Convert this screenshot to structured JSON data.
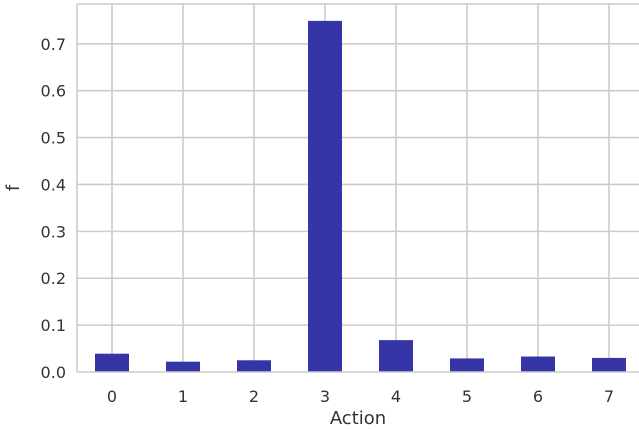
{
  "chart_data": {
    "type": "bar",
    "categories": [
      "0",
      "1",
      "2",
      "3",
      "4",
      "5",
      "6",
      "7"
    ],
    "values": [
      0.039,
      0.022,
      0.025,
      0.749,
      0.068,
      0.029,
      0.033,
      0.03
    ],
    "xlabel": "Action",
    "ylabel": "f",
    "ylim": [
      0.0,
      0.785
    ],
    "yticks": [
      "0.0",
      "0.1",
      "0.2",
      "0.3",
      "0.4",
      "0.5",
      "0.6",
      "0.7"
    ],
    "grid": true,
    "bar_color": "#3535a8"
  }
}
